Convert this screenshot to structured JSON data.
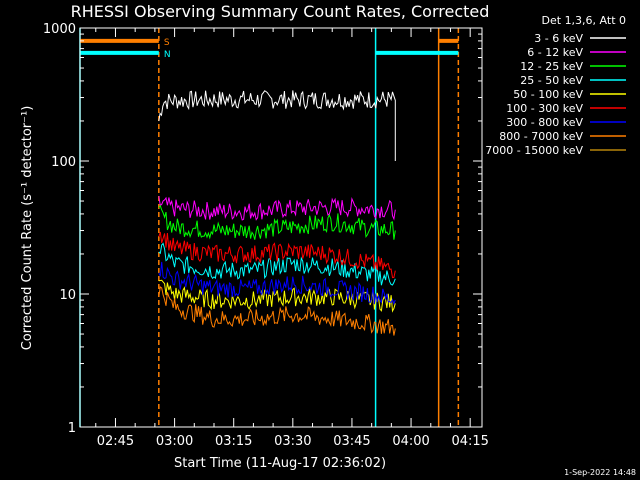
{
  "chart_data": {
    "type": "line",
    "title": "RHESSI Observing Summary Count Rates, Corrected",
    "xlabel": "Start Time (11-Aug-17 02:36:02)",
    "ylabel": "Corrected Count Rate (s⁻¹ detector⁻¹)",
    "y_scale": "log",
    "ylim": [
      1,
      1000
    ],
    "y_ticks": [
      {
        "value": 1,
        "label": "1"
      },
      {
        "value": 10,
        "label": "10"
      },
      {
        "value": 100,
        "label": "100"
      },
      {
        "value": 1000,
        "label": "1000"
      }
    ],
    "xlim": [
      "02:36",
      "04:18"
    ],
    "x_ticks": [
      "02:45",
      "03:00",
      "03:15",
      "03:30",
      "03:45",
      "04:00",
      "04:15"
    ],
    "legend_title": "Det 1,3,6, Att 0",
    "legend_position": "right",
    "series": [
      {
        "name": "3 - 6 keV",
        "color": "#ffffff",
        "x": [
          "02:56",
          "02:57",
          "03:00",
          "03:10",
          "03:20",
          "03:30",
          "03:40",
          "03:50",
          "03:56",
          "03:56"
        ],
        "y": [
          200,
          280,
          285,
          290,
          290,
          290,
          290,
          290,
          290,
          100
        ]
      },
      {
        "name": "6 - 12 keV",
        "color": "#ff00ff",
        "x": [
          "02:56",
          "03:00",
          "03:10",
          "03:20",
          "03:30",
          "03:40",
          "03:50",
          "03:56"
        ],
        "y": [
          48,
          44,
          42,
          42,
          44,
          45,
          44,
          43
        ]
      },
      {
        "name": "12 - 25 keV",
        "color": "#00ff00",
        "x": [
          "02:56",
          "03:00",
          "03:10",
          "03:20",
          "03:30",
          "03:40",
          "03:50",
          "03:56"
        ],
        "y": [
          40,
          32,
          30,
          30,
          32,
          35,
          31,
          30
        ]
      },
      {
        "name": "25 - 50 keV",
        "color": "#00ffff",
        "x": [
          "02:56",
          "03:00",
          "03:10",
          "03:20",
          "03:30",
          "03:40",
          "03:50",
          "03:56"
        ],
        "y": [
          22,
          17,
          15,
          15,
          17,
          16,
          14,
          13
        ]
      },
      {
        "name": "50 - 100 keV",
        "color": "#ffff00",
        "x": [
          "02:56",
          "03:00",
          "03:10",
          "03:20",
          "03:30",
          "03:40",
          "03:50",
          "03:56"
        ],
        "y": [
          12,
          10,
          9,
          9,
          9.5,
          9.5,
          9,
          8.5
        ]
      },
      {
        "name": "100 - 300 keV",
        "color": "#ff0000",
        "x": [
          "02:56",
          "03:00",
          "03:10",
          "03:20",
          "03:30",
          "03:40",
          "03:50",
          "03:56"
        ],
        "y": [
          30,
          22,
          20,
          20,
          21,
          20,
          17,
          15
        ]
      },
      {
        "name": "300 - 800 keV",
        "color": "#0000ff",
        "x": [
          "02:56",
          "03:00",
          "03:10",
          "03:20",
          "03:30",
          "03:40",
          "03:50",
          "03:56"
        ],
        "y": [
          16,
          13,
          11,
          11,
          12,
          11,
          10,
          9
        ]
      },
      {
        "name": "800 - 7000 keV",
        "color": "#ff7f00",
        "x": [
          "02:56",
          "03:00",
          "03:10",
          "03:20",
          "03:30",
          "03:40",
          "03:50",
          "03:56"
        ],
        "y": [
          11,
          8,
          6.5,
          6.5,
          7,
          6.5,
          6,
          5.5
        ]
      },
      {
        "name": "7000 - 15000 keV",
        "color": "#b8860b",
        "x": [],
        "y": []
      }
    ],
    "vertical_markers": [
      {
        "time": "02:36",
        "color": "#00ffff",
        "style": "solid"
      },
      {
        "time": "02:56",
        "color": "#ff7f00",
        "style": "dashed"
      },
      {
        "time": "03:51",
        "color": "#00ffff",
        "style": "solid"
      },
      {
        "time": "04:07",
        "color": "#ff7f00",
        "style": "solid"
      },
      {
        "time": "04:12",
        "color": "#ff7f00",
        "style": "dashed"
      }
    ],
    "flag_bars": [
      {
        "label": "S",
        "color": "#ff7f00",
        "value": 800,
        "segments": [
          [
            "02:36",
            "02:56"
          ],
          [
            "04:07",
            "04:12"
          ]
        ]
      },
      {
        "label": "N",
        "color": "#00ffff",
        "value": 650,
        "segments": [
          [
            "02:36",
            "02:56"
          ],
          [
            "03:51",
            "04:12"
          ]
        ]
      }
    ],
    "footer_date": "1-Sep-2022 14:48"
  }
}
